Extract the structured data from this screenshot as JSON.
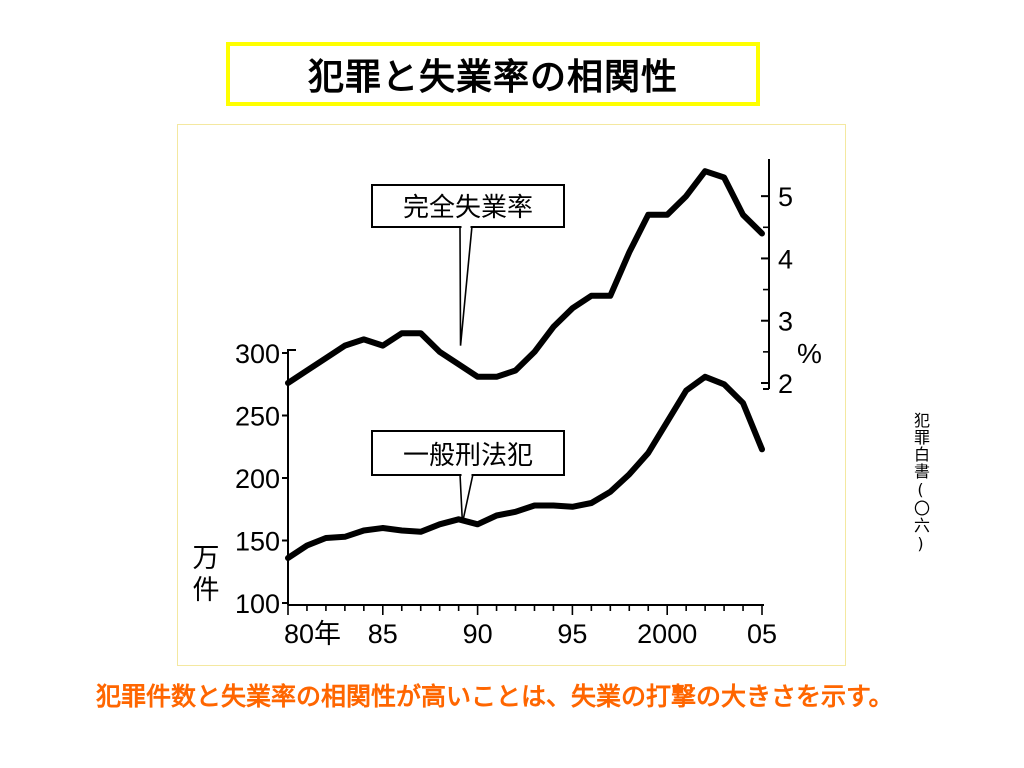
{
  "title": "犯罪と失業率の相関性",
  "source": "犯罪白書(〇六)",
  "caption": "犯罪件数と失業率の相関性が高いことは、失業の打撃の大きさを示す。",
  "chart_data": {
    "type": "line",
    "x": [
      1980,
      1981,
      1982,
      1983,
      1984,
      1985,
      1986,
      1987,
      1988,
      1989,
      1990,
      1991,
      1992,
      1993,
      1994,
      1995,
      1996,
      1997,
      1998,
      1999,
      2000,
      2001,
      2002,
      2003,
      2004,
      2005
    ],
    "x_ticks": [
      {
        "value": 1980,
        "label": "80年"
      },
      {
        "value": 1985,
        "label": "85"
      },
      {
        "value": 1990,
        "label": "90"
      },
      {
        "value": 1995,
        "label": "95"
      },
      {
        "value": 2000,
        "label": "2000"
      },
      {
        "value": 2005,
        "label": "05"
      }
    ],
    "xlim": [
      1980,
      2005
    ],
    "left_axis": {
      "unit_label": "万件",
      "ylim": [
        100,
        300
      ],
      "ticks": [
        "100",
        "150",
        "200",
        "250",
        "300"
      ]
    },
    "right_axis": {
      "unit_label": "%",
      "ylim": [
        2,
        5.5
      ],
      "ticks": [
        "2",
        "3",
        "4",
        "5"
      ]
    },
    "series": [
      {
        "name": "完全失業率",
        "axis": "right",
        "values": [
          2.0,
          2.2,
          2.4,
          2.6,
          2.7,
          2.6,
          2.8,
          2.8,
          2.5,
          2.3,
          2.1,
          2.1,
          2.2,
          2.5,
          2.9,
          3.2,
          3.4,
          3.4,
          4.1,
          4.7,
          4.7,
          5.0,
          5.4,
          5.3,
          4.7,
          4.4
        ]
      },
      {
        "name": "一般刑法犯",
        "axis": "left",
        "values": [
          136,
          146,
          152,
          153,
          158,
          160,
          158,
          157,
          163,
          167,
          163,
          170,
          173,
          178,
          178,
          177,
          180,
          189,
          203,
          220,
          245,
          270,
          281,
          275,
          260,
          223
        ]
      }
    ],
    "grid": false
  }
}
